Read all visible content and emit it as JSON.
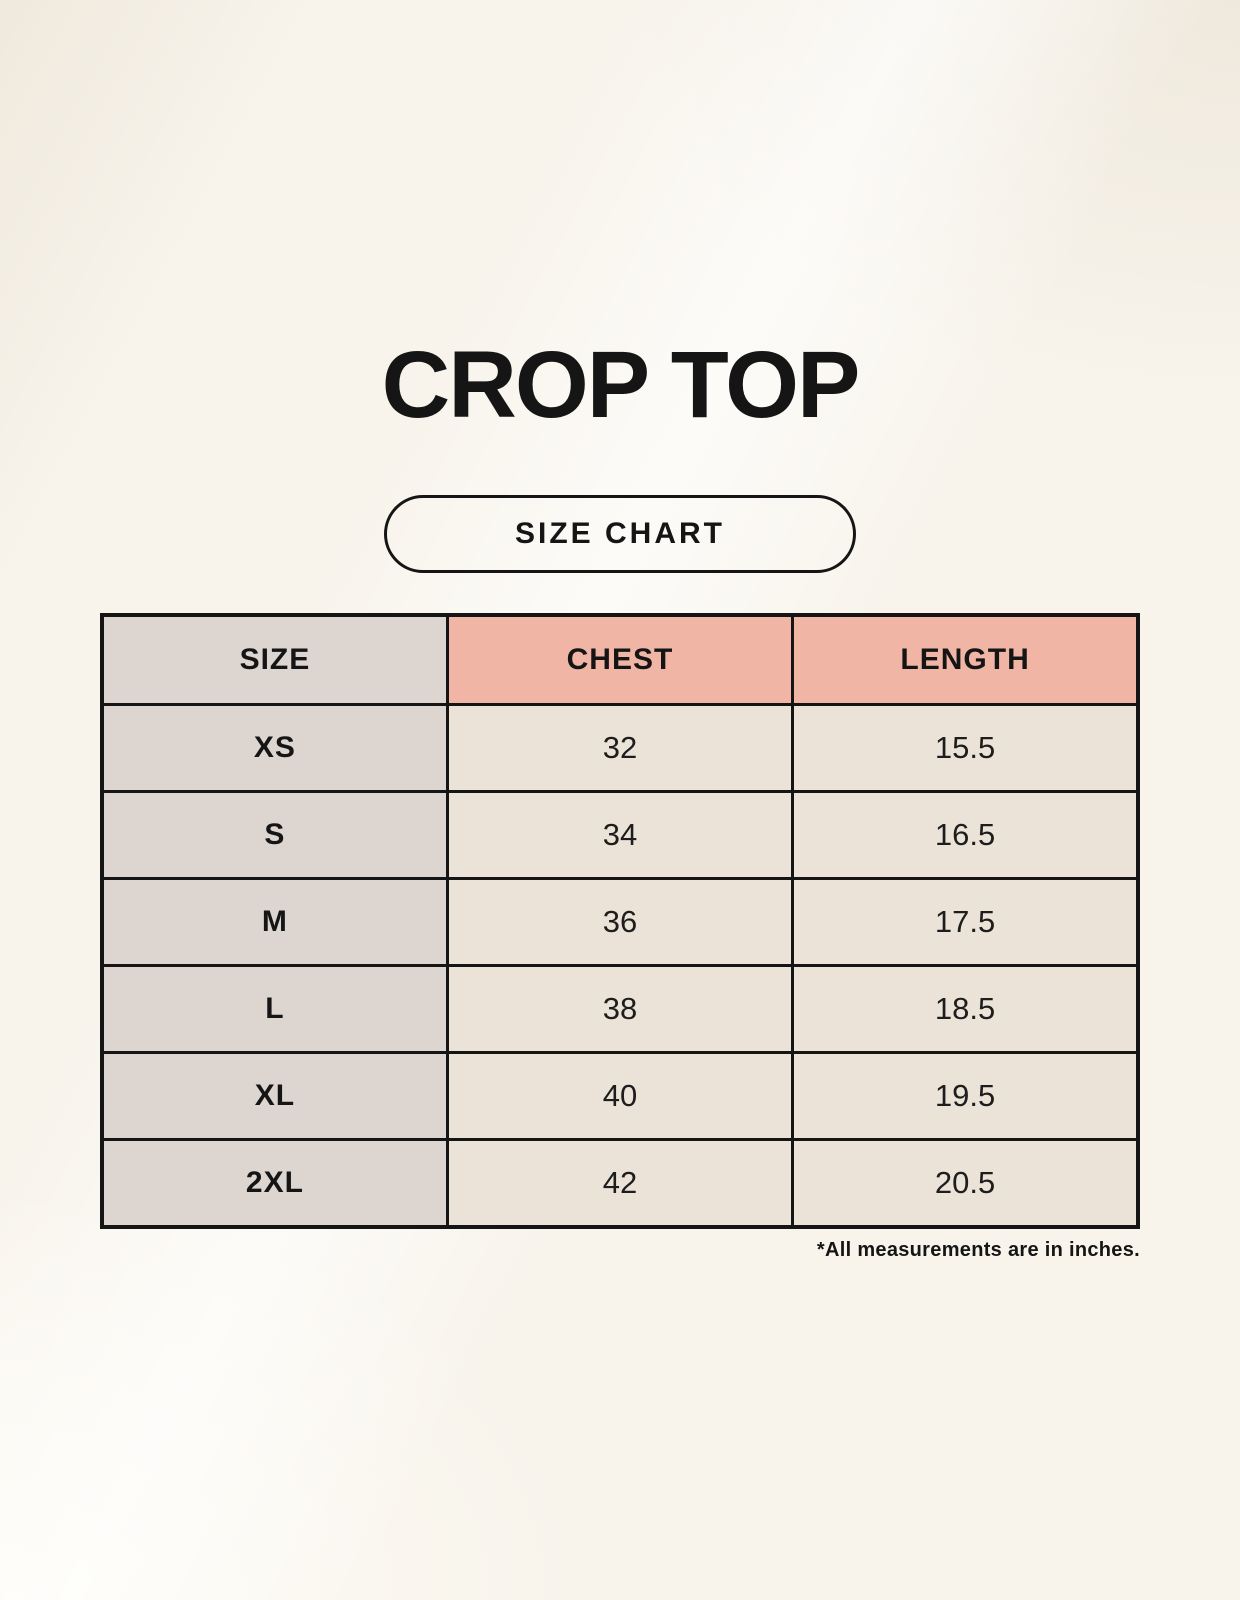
{
  "page": {
    "title": "CROP TOP",
    "size_chart_badge": "SIZE CHART",
    "footnote": "*All measurements are in inches."
  },
  "colors": {
    "background": "#f8f4ec",
    "header_pink": "#f0b5a5",
    "size_column_gray": "#dcd5d0",
    "value_cell_cream": "#ebe3d8",
    "ink": "#151515"
  },
  "chart_data": {
    "type": "table",
    "title": "CROP TOP",
    "subtitle": "SIZE CHART",
    "columns": [
      "SIZE",
      "CHEST",
      "LENGTH"
    ],
    "rows": [
      [
        "XS",
        "32",
        "15.5"
      ],
      [
        "S",
        "34",
        "16.5"
      ],
      [
        "M",
        "36",
        "17.5"
      ],
      [
        "L",
        "38",
        "18.5"
      ],
      [
        "XL",
        "40",
        "19.5"
      ],
      [
        "2XL",
        "42",
        "20.5"
      ]
    ],
    "units_note": "*All measurements are in inches.",
    "layout": {
      "header_row_background_first": "#dcd5d0",
      "header_row_background_rest": "#f0b5a5",
      "grid": "black solid borders"
    }
  }
}
